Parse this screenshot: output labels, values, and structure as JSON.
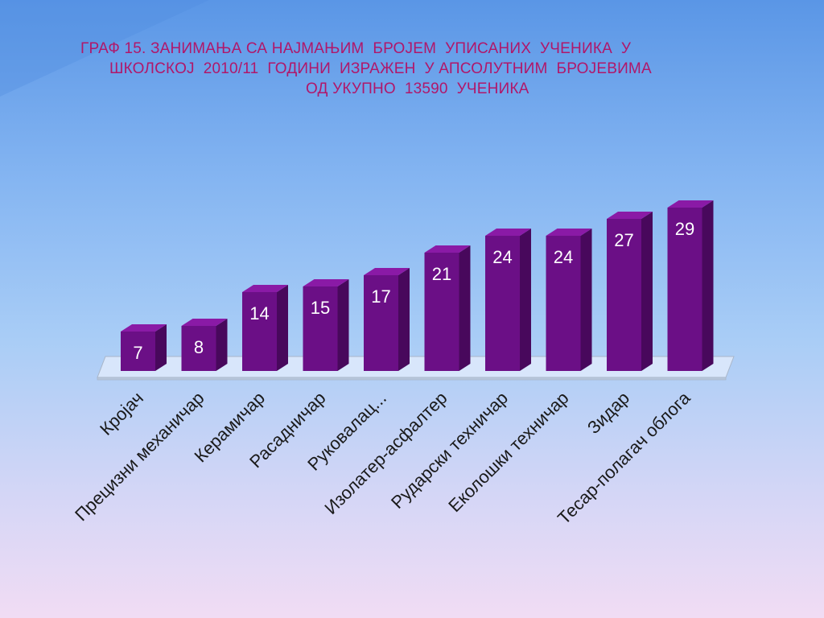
{
  "chart_data": {
    "type": "bar",
    "title_lines": [
      "ГРАФ 15. ЗАНИМАЊА СА НАЈМАЊИМ  БРОЈЕМ  УПИСАНИХ  УЧЕНИКА  У",
      "ШКОЛСКОЈ  2010/11  ГОДИНИ  ИЗРАЖЕН  У АПСОЛУТНИМ  БРОЈЕВИМА",
      "ОД УКУПНО  13590  УЧЕНИКА"
    ],
    "categories": [
      "Кројач",
      "Прецизни механичар",
      "Керамичар",
      "Расадничар",
      "Руковалац...",
      "Изолатер-асфалтер",
      "Рударски техничар",
      "Еколошки техничар",
      "Зидар",
      "Тесар-полагач облога"
    ],
    "values": [
      7,
      8,
      14,
      15,
      17,
      21,
      24,
      24,
      27,
      29
    ],
    "data_labels": [
      "7",
      "8",
      "14",
      "15",
      "17",
      "21",
      "24",
      "24",
      "27",
      "29"
    ],
    "ylim": [
      0,
      30
    ],
    "grid": false,
    "legend": "none",
    "xlabel": "",
    "ylabel": "",
    "colors": {
      "bar_front": "#6b0f86",
      "bar_side": "#48085c",
      "bar_top": "#8a1aa6",
      "floor": "#d8e6fb",
      "floor_stroke": "#a9b6c9",
      "title": "#b0176a",
      "value_text": "#ffffff",
      "category_text": "#1a1a1a"
    }
  }
}
